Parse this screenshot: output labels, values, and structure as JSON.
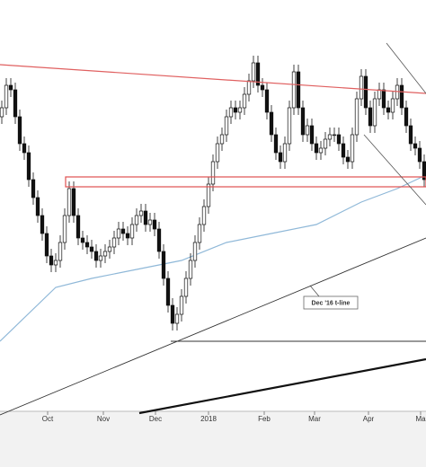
{
  "chart_data": {
    "type": "candlestick",
    "xlim": [
      -0.4,
      94.4
    ],
    "ylim": [
      0,
      520
    ],
    "xticks": [
      {
        "value": 10.2,
        "label": "Oct"
      },
      {
        "value": 22.6,
        "label": "Nov"
      },
      {
        "value": 34.2,
        "label": "Dec"
      },
      {
        "value": 46,
        "label": "2018"
      },
      {
        "value": 58.4,
        "label": "Feb"
      },
      {
        "value": 69.6,
        "label": "Mar"
      },
      {
        "value": 81.6,
        "label": "Apr"
      },
      {
        "value": 93.2,
        "label": "Ma"
      }
    ],
    "up_color": "#ffffff",
    "down_color": "#111111",
    "open": [
      390,
      400,
      425,
      420,
      390,
      360,
      350,
      320,
      300,
      280,
      260,
      235,
      225,
      230,
      250,
      280,
      310,
      280,
      255,
      250,
      245,
      240,
      230,
      235,
      240,
      245,
      255,
      265,
      260,
      255,
      270,
      280,
      285,
      270,
      275,
      265,
      240,
      210,
      180,
      160,
      170,
      190,
      210,
      230,
      250,
      270,
      290,
      315,
      340,
      360,
      370,
      390,
      400,
      395,
      400,
      415,
      430,
      450,
      425,
      420,
      395,
      370,
      350,
      340,
      360,
      400,
      440,
      400,
      370,
      380,
      360,
      350,
      355,
      365,
      370,
      370,
      360,
      345,
      340,
      370,
      410,
      435,
      400,
      380,
      410,
      420,
      400,
      395,
      410,
      425,
      400,
      380,
      360,
      355,
      340
    ],
    "high": [
      408,
      433,
      433,
      428,
      398,
      368,
      358,
      328,
      308,
      288,
      268,
      243,
      238,
      258,
      288,
      318,
      318,
      288,
      263,
      258,
      253,
      248,
      243,
      248,
      253,
      263,
      273,
      273,
      268,
      278,
      288,
      293,
      293,
      283,
      283,
      273,
      248,
      218,
      188,
      178,
      198,
      218,
      238,
      258,
      278,
      298,
      323,
      348,
      368,
      378,
      398,
      408,
      408,
      408,
      423,
      438,
      458,
      458,
      433,
      428,
      403,
      378,
      358,
      368,
      408,
      448,
      448,
      408,
      388,
      388,
      368,
      363,
      373,
      378,
      378,
      378,
      368,
      353,
      378,
      418,
      443,
      443,
      408,
      418,
      428,
      428,
      408,
      418,
      433,
      433,
      408,
      388,
      368,
      363,
      348
    ],
    "low": [
      382,
      392,
      412,
      382,
      352,
      342,
      312,
      292,
      272,
      252,
      227,
      217,
      217,
      222,
      242,
      272,
      272,
      247,
      242,
      237,
      232,
      222,
      222,
      227,
      232,
      237,
      247,
      252,
      247,
      247,
      262,
      272,
      262,
      262,
      257,
      232,
      202,
      172,
      152,
      152,
      162,
      182,
      202,
      222,
      242,
      262,
      282,
      307,
      332,
      352,
      362,
      382,
      387,
      387,
      392,
      407,
      422,
      417,
      412,
      387,
      362,
      342,
      332,
      332,
      352,
      392,
      392,
      362,
      362,
      352,
      342,
      342,
      347,
      357,
      362,
      352,
      337,
      332,
      332,
      362,
      402,
      392,
      372,
      372,
      402,
      392,
      387,
      387,
      402,
      392,
      372,
      352,
      347,
      332,
      312
    ],
    "close": [
      400,
      425,
      420,
      390,
      360,
      350,
      320,
      300,
      280,
      260,
      235,
      225,
      230,
      250,
      280,
      310,
      280,
      255,
      250,
      245,
      240,
      230,
      235,
      240,
      245,
      255,
      265,
      260,
      255,
      270,
      280,
      285,
      270,
      275,
      265,
      240,
      210,
      180,
      160,
      170,
      190,
      210,
      230,
      250,
      270,
      290,
      315,
      340,
      360,
      370,
      390,
      400,
      395,
      400,
      415,
      430,
      450,
      425,
      420,
      395,
      370,
      350,
      340,
      360,
      400,
      440,
      400,
      370,
      380,
      360,
      350,
      355,
      365,
      370,
      370,
      360,
      345,
      340,
      370,
      410,
      435,
      400,
      380,
      410,
      420,
      400,
      395,
      410,
      425,
      400,
      380,
      360,
      355,
      340,
      320
    ],
    "series": [
      {
        "color": "#8fb8d8",
        "x": [
          -0.4,
          12,
          20,
          30,
          40,
          50,
          60,
          70,
          80,
          88,
          94.4
        ],
        "values": [
          140,
          200,
          210,
          220,
          230,
          250,
          260,
          270,
          295,
          310,
          325
        ]
      }
    ],
    "annotation": "Dec '16 t-line"
  }
}
